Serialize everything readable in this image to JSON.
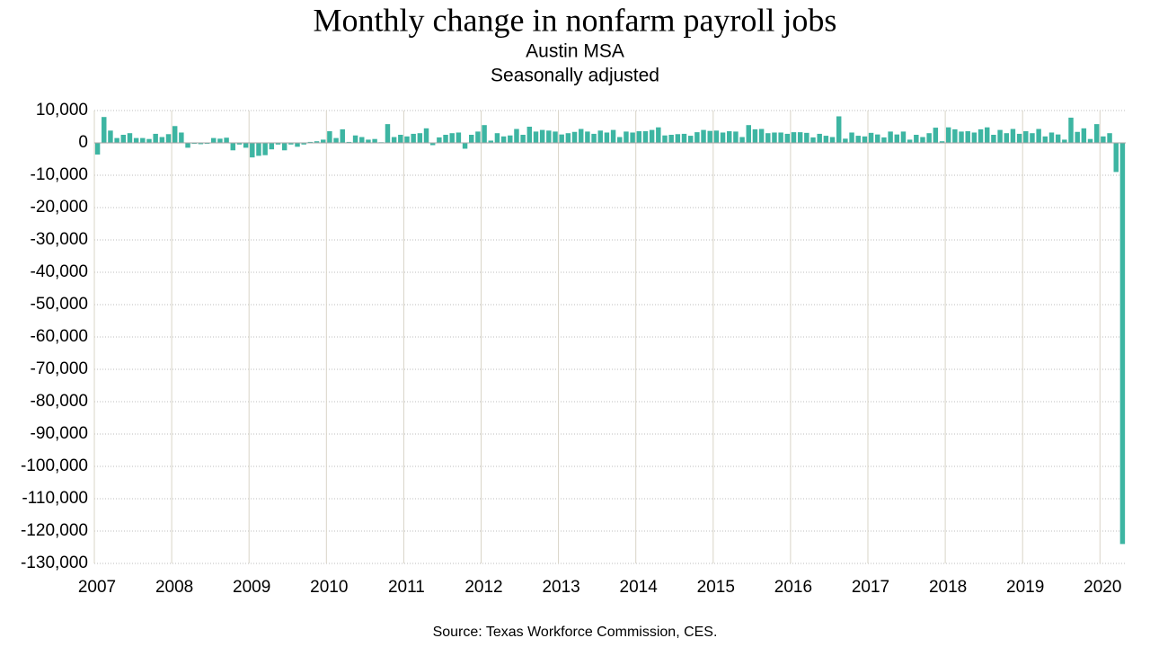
{
  "chart_data": {
    "type": "bar",
    "title": "Monthly change in nonfarm payroll jobs",
    "subtitle": "Austin MSA",
    "subtitle2": "Seasonally adjusted",
    "source": "Source: Texas Workforce Commission, CES.",
    "color": "#3db5a2",
    "grid": true,
    "categories": [
      "2007",
      null,
      null,
      null,
      null,
      null,
      null,
      null,
      null,
      null,
      null,
      null,
      "2008",
      null,
      null,
      null,
      null,
      null,
      null,
      null,
      null,
      null,
      null,
      null,
      "2009",
      null,
      null,
      null,
      null,
      null,
      null,
      null,
      null,
      null,
      null,
      null,
      "2010",
      null,
      null,
      null,
      null,
      null,
      null,
      null,
      null,
      null,
      null,
      null,
      "2011",
      null,
      null,
      null,
      null,
      null,
      null,
      null,
      null,
      null,
      null,
      null,
      "2012",
      null,
      null,
      null,
      null,
      null,
      null,
      null,
      null,
      null,
      null,
      null,
      "2013",
      null,
      null,
      null,
      null,
      null,
      null,
      null,
      null,
      null,
      null,
      null,
      "2014",
      null,
      null,
      null,
      null,
      null,
      null,
      null,
      null,
      null,
      null,
      null,
      "2015",
      null,
      null,
      null,
      null,
      null,
      null,
      null,
      null,
      null,
      null,
      null,
      "2016",
      null,
      null,
      null,
      null,
      null,
      null,
      null,
      null,
      null,
      null,
      null,
      "2017",
      null,
      null,
      null,
      null,
      null,
      null,
      null,
      null,
      null,
      null,
      null,
      "2018",
      null,
      null,
      null,
      null,
      null,
      null,
      null,
      null,
      null,
      null,
      null,
      "2019",
      null,
      null,
      null,
      null,
      null,
      null,
      null,
      null,
      null,
      null,
      null,
      "2020",
      null,
      null,
      null
    ],
    "values": [
      -3600,
      8000,
      3800,
      1500,
      2500,
      3000,
      1500,
      1500,
      1200,
      2800,
      1800,
      2700,
      5200,
      3200,
      -1500,
      -300,
      -400,
      -300,
      1500,
      1300,
      1600,
      -2300,
      -500,
      -1500,
      -4500,
      -4000,
      -3800,
      -2000,
      -500,
      -2300,
      -500,
      -1200,
      -500,
      300,
      500,
      1000,
      3600,
      1500,
      4200,
      300,
      2300,
      1800,
      1000,
      1200,
      200,
      5800,
      1800,
      2500,
      2000,
      2800,
      3000,
      4500,
      -700,
      1700,
      2500,
      3000,
      3200,
      -1800,
      2500,
      3500,
      5500,
      700,
      3000,
      2000,
      2300,
      4300,
      2500,
      5000,
      3500,
      4000,
      3800,
      3500,
      2600,
      3000,
      3400,
      4300,
      3500,
      2800,
      3800,
      3200,
      4000,
      1800,
      3500,
      3200,
      3600,
      3600,
      4000,
      4800,
      2300,
      2500,
      2700,
      2800,
      2200,
      3300,
      4000,
      3700,
      3800,
      3200,
      3600,
      3500,
      1800,
      5500,
      4200,
      4300,
      3000,
      3200,
      3200,
      2800,
      3300,
      3300,
      3100,
      1700,
      2800,
      2200,
      1800,
      8200,
      1300,
      3200,
      2200,
      2000,
      3100,
      2600,
      1700,
      3500,
      2600,
      3500,
      1000,
      2500,
      1800,
      3000,
      4700,
      500,
      4800,
      4200,
      3500,
      3600,
      3200,
      4200,
      4800,
      2500,
      4000,
      3000,
      4300,
      2800,
      3600,
      3000,
      4300,
      2000,
      3200,
      2600,
      1000,
      7800,
      3400,
      4500,
      1200,
      5800,
      2000,
      3000,
      -9000,
      -124000
    ],
    "ylim": [
      -130000,
      10000
    ],
    "yticks": [
      {
        "value": -130000,
        "label": "-130,000"
      },
      {
        "value": -120000,
        "label": "-120,000"
      },
      {
        "value": -110000,
        "label": "-110,000"
      },
      {
        "value": -100000,
        "label": "-100,000"
      },
      {
        "value": -90000,
        "label": "-90,000"
      },
      {
        "value": -80000,
        "label": "-80,000"
      },
      {
        "value": -70000,
        "label": "-70,000"
      },
      {
        "value": -60000,
        "label": "-60,000"
      },
      {
        "value": -50000,
        "label": "-50,000"
      },
      {
        "value": -40000,
        "label": "-40,000"
      },
      {
        "value": -30000,
        "label": "-30,000"
      },
      {
        "value": -20000,
        "label": "-20,000"
      },
      {
        "value": -10000,
        "label": "-10,000"
      },
      0,
      {
        "value": 10000,
        "label": "10,000"
      }
    ]
  }
}
